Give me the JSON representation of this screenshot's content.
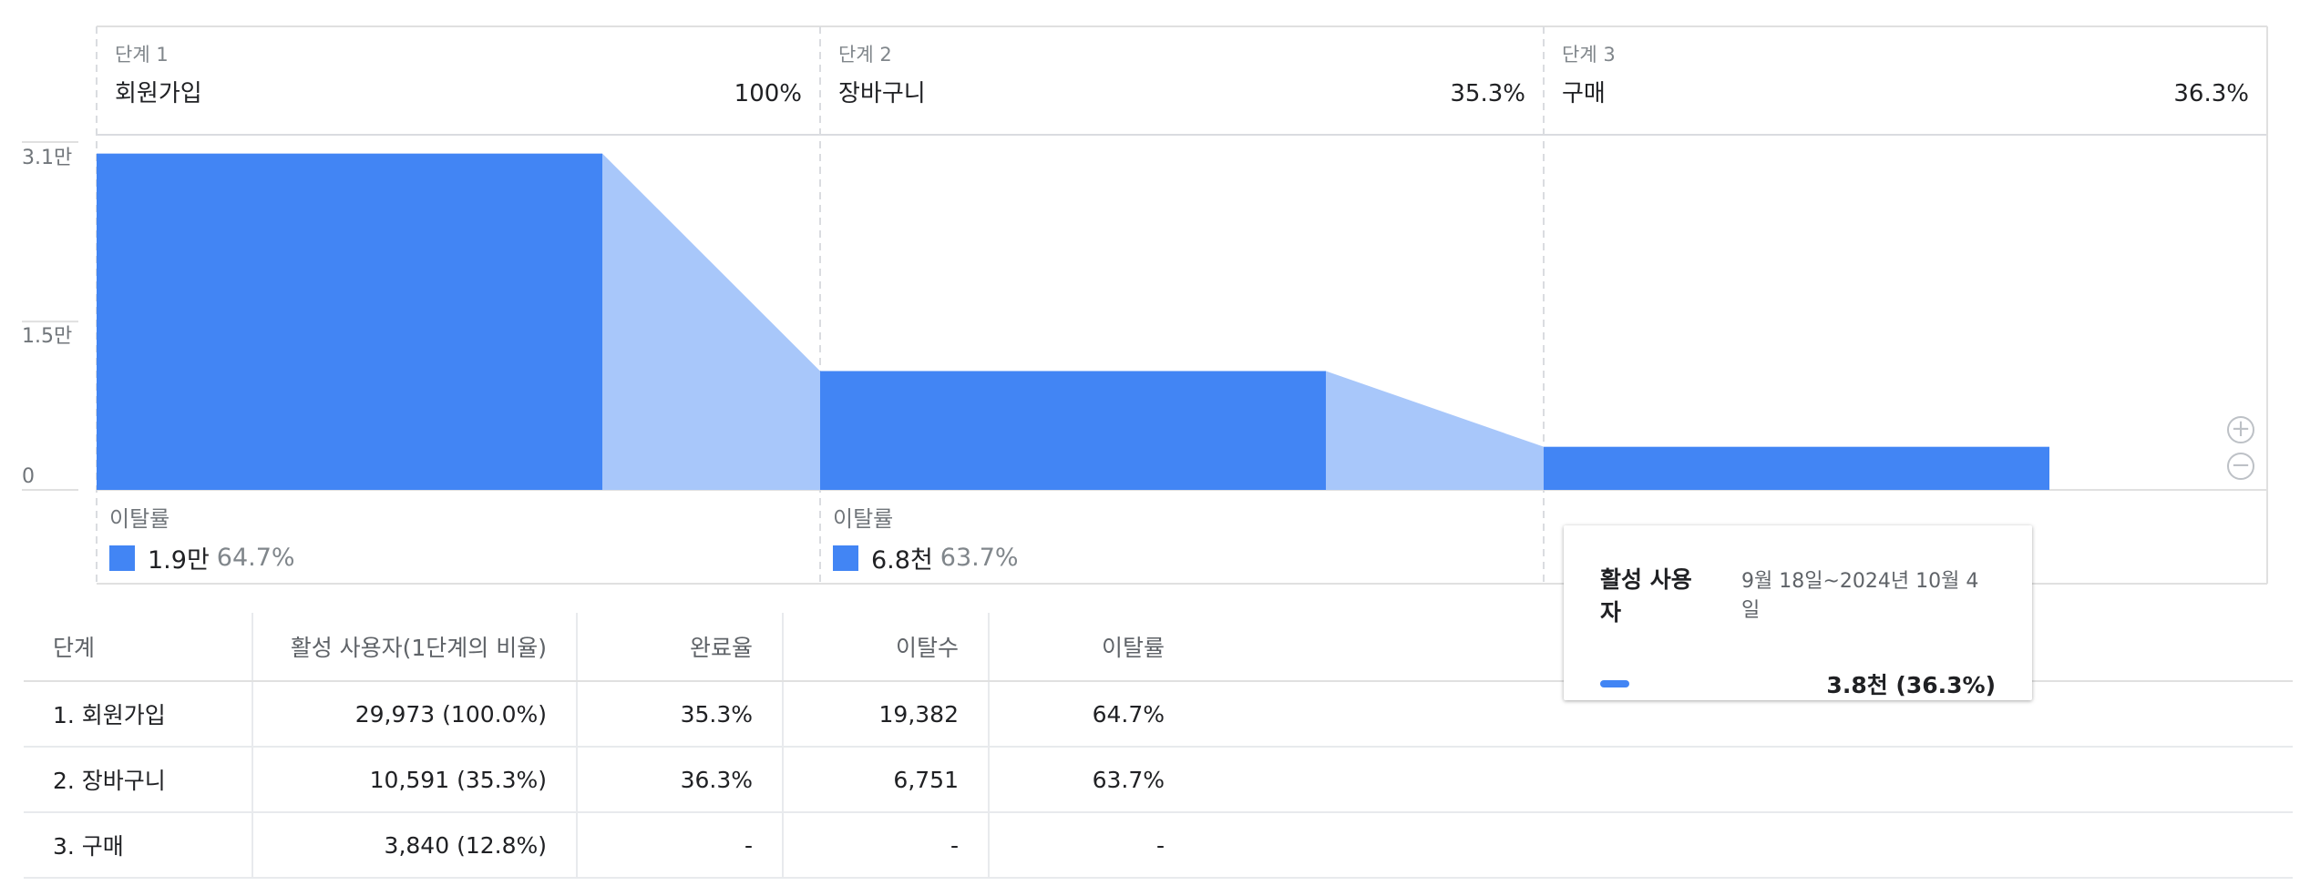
{
  "chart_data": {
    "type": "bar",
    "title": "",
    "categories": [
      "회원가입",
      "장바구니",
      "구매"
    ],
    "values": [
      29973,
      10591,
      3840
    ],
    "ylim": [
      0,
      31000
    ],
    "yticks": [
      {
        "value": 31000,
        "label": "3.1만"
      },
      {
        "value": 15000,
        "label": "1.5만"
      },
      {
        "value": 0,
        "label": "0"
      }
    ],
    "steps": [
      {
        "step_label": "단계 1",
        "name": "회원가입",
        "percent": "100%"
      },
      {
        "step_label": "단계 2",
        "name": "장바구니",
        "percent": "35.3%"
      },
      {
        "step_label": "단계 3",
        "name": "구매",
        "percent": "36.3%"
      }
    ],
    "dropouts": [
      {
        "label": "이탈률",
        "count": "1.9만",
        "rate": "64.7%"
      },
      {
        "label": "이탈률",
        "count": "6.8천",
        "rate": "63.7%"
      }
    ],
    "colors": {
      "bar": "#4285f4",
      "dropoff": "#a8c7fa"
    }
  },
  "zoom": {
    "in_icon": "zoom-in-icon",
    "out_icon": "zoom-out-icon",
    "in_glyph": "+",
    "out_glyph": "−"
  },
  "tooltip": {
    "title": "활성 사용자",
    "date_range": "9월 18일~2024년 10월 4일",
    "value": "3.8천 (36.3%)"
  },
  "table": {
    "headers": {
      "step": "단계",
      "users": "활성 사용자(1단계의 비율)",
      "completion": "완료율",
      "dropoffs": "이탈수",
      "dropoff_rate": "이탈률"
    },
    "rows": [
      {
        "step": "1. 회원가입",
        "users": "29,973 (100.0%)",
        "completion": "35.3%",
        "dropoffs": "19,382",
        "dropoff_rate": "64.7%"
      },
      {
        "step": "2. 장바구니",
        "users": "10,591 (35.3%)",
        "completion": "36.3%",
        "dropoffs": "6,751",
        "dropoff_rate": "63.7%"
      },
      {
        "step": "3. 구매",
        "users": "3,840 (12.8%)",
        "completion": "-",
        "dropoffs": "-",
        "dropoff_rate": "-"
      }
    ]
  }
}
